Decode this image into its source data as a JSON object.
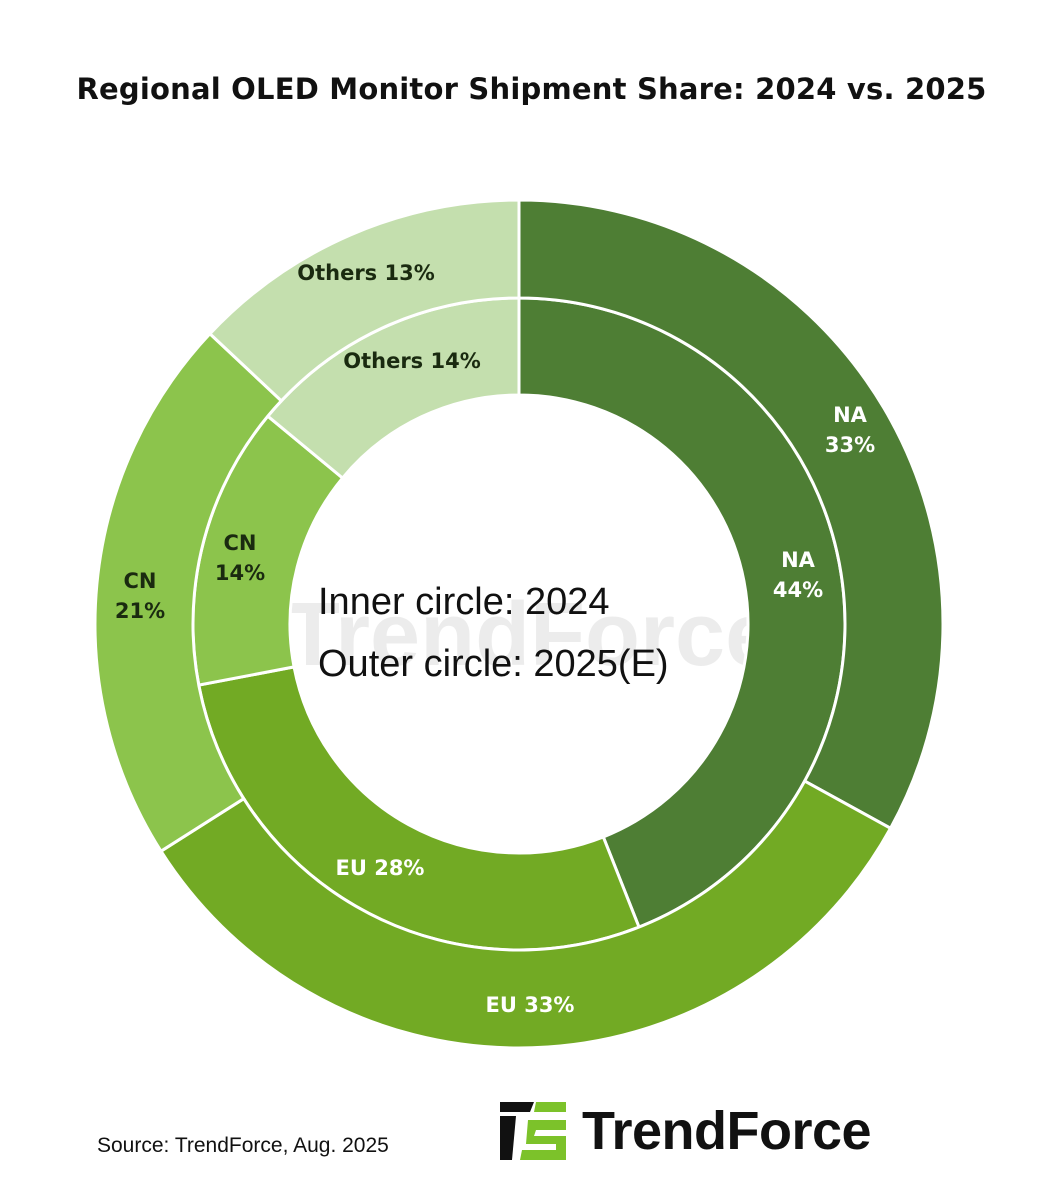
{
  "chart_data": {
    "type": "pie",
    "subtype": "double-donut",
    "title": "Regional OLED Monitor Shipment Share: 2024 vs. 2025",
    "center_text": [
      "Inner circle: 2024",
      "Outer circle: 2025(E)"
    ],
    "categories": [
      "NA",
      "EU",
      "CN",
      "Others"
    ],
    "series": [
      {
        "name": "2024",
        "ring": "inner",
        "values": [
          44,
          28,
          14,
          14
        ],
        "labels": [
          "NA\n44%",
          "EU 28%",
          "CN\n14%",
          "Others 14%"
        ]
      },
      {
        "name": "2025(E)",
        "ring": "outer",
        "values": [
          33,
          33,
          21,
          13
        ],
        "labels": [
          "NA\n33%",
          "EU 33%",
          "CN\n21%",
          "Others 13%"
        ]
      }
    ],
    "colors": {
      "NA": "#4e7e34",
      "EU": "#72aa24",
      "CN": "#8cc44c",
      "Others": "#c4dfae"
    },
    "label_colors": {
      "NA": "#ffffff",
      "EU": "#ffffff",
      "CN": "#1a2a10",
      "Others": "#1a2a10"
    },
    "direction": "clockwise from top",
    "legend": "none"
  },
  "source": "Source: TrendForce, Aug. 2025",
  "logo": {
    "text": "TrendForce",
    "accent": "#7cc22a"
  },
  "watermark": "TrendForce"
}
